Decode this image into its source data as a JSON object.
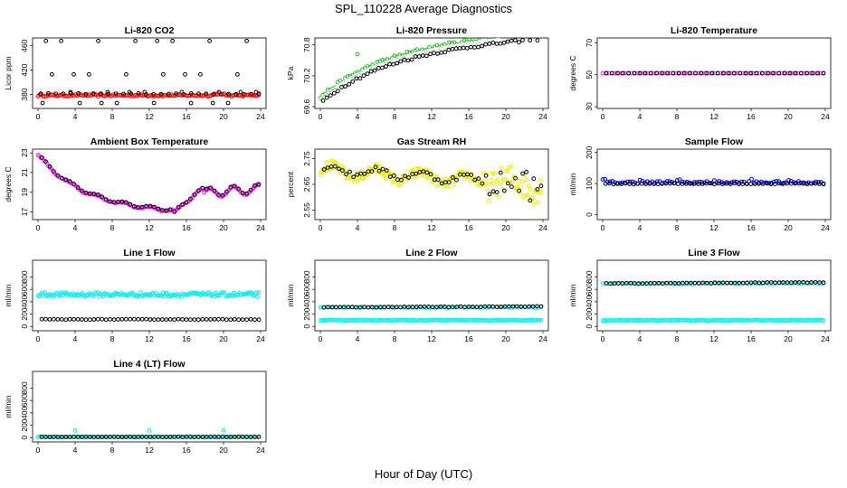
{
  "figure": {
    "title": "SPL_110228  Average Diagnostics",
    "xlabel": "Hour of Day (UTC)"
  },
  "colors": {
    "black": "#000000",
    "red": "#ff0000",
    "green": "#22bb22",
    "white": "#ffffff",
    "magenta": "#ff22ff",
    "yellow": "#eeee00",
    "blue": "#0000ee",
    "cyan": "#00eeee"
  },
  "chart_data": [
    {
      "type": "scatter",
      "title": "Li-820 CO2",
      "ylabel": "Licor ppm",
      "xlim": [
        0,
        24
      ],
      "xticks": [
        0,
        4,
        8,
        12,
        16,
        20,
        24
      ],
      "ylim": [
        360,
        470
      ],
      "yticks": [
        380,
        420,
        460
      ],
      "series": [
        {
          "name": "co2-low-scatter",
          "color": "black",
          "gen": "co2low"
        },
        {
          "name": "co2-red",
          "color": "red",
          "gen": "co2red"
        },
        {
          "name": "co2-black-base",
          "color": "black",
          "gen": "co2base"
        }
      ]
    },
    {
      "type": "scatter",
      "title": "Li-820 Pressure",
      "ylabel": "kPa",
      "xlim": [
        0,
        24
      ],
      "xticks": [
        0,
        4,
        8,
        12,
        16,
        20,
        24
      ],
      "ylim": [
        69.6,
        70.9
      ],
      "yticks": [
        69.6,
        70.2,
        70.8
      ],
      "series": [
        {
          "name": "pressure-green",
          "color": "green",
          "gen": "presgreen"
        },
        {
          "name": "pressure-white-line",
          "color": "white",
          "gen": "preswhite"
        },
        {
          "name": "pressure-black",
          "color": "black",
          "gen": "presblack"
        }
      ]
    },
    {
      "type": "scatter",
      "title": "Li-820 Temperature",
      "ylabel": "degrees C",
      "xlim": [
        0,
        24
      ],
      "xticks": [
        0,
        4,
        8,
        12,
        16,
        20,
        24
      ],
      "ylim": [
        30,
        72
      ],
      "yticks": [
        30,
        50,
        70
      ],
      "series": [
        {
          "name": "licor-temp-magenta",
          "color": "magenta",
          "gen": "lictempm"
        },
        {
          "name": "licor-temp-black",
          "color": "black",
          "gen": "lictempk"
        }
      ]
    },
    {
      "type": "scatter",
      "title": "Ambient Box Temperature",
      "ylabel": "degrees C",
      "xlim": [
        0,
        24
      ],
      "xticks": [
        0,
        4,
        8,
        12,
        16,
        20,
        24
      ],
      "ylim": [
        16.4,
        23.2
      ],
      "yticks": [
        17,
        19,
        21,
        23
      ],
      "series": [
        {
          "name": "box-temp-magenta",
          "color": "magenta",
          "gen": "boxm"
        },
        {
          "name": "box-temp-black",
          "color": "black",
          "gen": "boxk"
        }
      ]
    },
    {
      "type": "scatter",
      "title": "Gas Stream RH",
      "ylabel": "percent",
      "xlim": [
        0,
        24
      ],
      "xticks": [
        0,
        4,
        8,
        12,
        16,
        20,
        24
      ],
      "ylim": [
        2.52,
        2.78
      ],
      "yticks": [
        2.55,
        2.65,
        2.75
      ],
      "series": [
        {
          "name": "rh-yellow",
          "color": "yellow",
          "gen": "rhy"
        },
        {
          "name": "rh-black",
          "color": "black",
          "gen": "rhk"
        }
      ]
    },
    {
      "type": "scatter",
      "title": "Sample Flow",
      "ylabel": "ml/min",
      "xlim": [
        0,
        24
      ],
      "xticks": [
        0,
        4,
        8,
        12,
        16,
        20,
        24
      ],
      "ylim": [
        -10,
        205
      ],
      "yticks": [
        0,
        100,
        200
      ],
      "series": [
        {
          "name": "sample-flow-blue",
          "color": "blue",
          "gen": "sfb"
        },
        {
          "name": "sample-flow-black",
          "color": "black",
          "gen": "sfk"
        }
      ]
    },
    {
      "type": "scatter",
      "title": "Line 1 Flow",
      "ylabel": "ml/min",
      "xlim": [
        0,
        24
      ],
      "xticks": [
        0,
        4,
        8,
        12,
        16,
        20,
        24
      ],
      "ylim": [
        -40,
        1040
      ],
      "yticks": [
        0,
        200,
        400,
        600,
        800
      ],
      "series": [
        {
          "name": "line1-cyan",
          "color": "cyan",
          "gen": "l1c"
        },
        {
          "name": "line1-black",
          "color": "black",
          "gen": "l1k"
        }
      ]
    },
    {
      "type": "scatter",
      "title": "Line 2 Flow",
      "ylabel": "ml/min",
      "xlim": [
        0,
        24
      ],
      "xticks": [
        0,
        4,
        8,
        12,
        16,
        20,
        24
      ],
      "ylim": [
        -40,
        1040
      ],
      "yticks": [
        0,
        200,
        400,
        600,
        800
      ],
      "series": [
        {
          "name": "line2-cyan-low",
          "color": "cyan",
          "gen": "l2c"
        },
        {
          "name": "line2-cyan-high",
          "color": "cyan",
          "gen": "l2ch"
        },
        {
          "name": "line2-black",
          "color": "black",
          "gen": "l2k"
        }
      ]
    },
    {
      "type": "scatter",
      "title": "Line 3 Flow",
      "ylabel": "ml/min",
      "xlim": [
        0,
        24
      ],
      "xticks": [
        0,
        4,
        8,
        12,
        16,
        20,
        24
      ],
      "ylim": [
        -40,
        1040
      ],
      "yticks": [
        0,
        200,
        400,
        600,
        800
      ],
      "series": [
        {
          "name": "line3-cyan-low",
          "color": "cyan",
          "gen": "l3c"
        },
        {
          "name": "line3-cyan-high",
          "color": "cyan",
          "gen": "l3ch"
        },
        {
          "name": "line3-black",
          "color": "black",
          "gen": "l3k"
        }
      ]
    },
    {
      "type": "scatter",
      "title": "Line 4 (LT) Flow",
      "ylabel": "ml/min",
      "xlim": [
        0,
        24
      ],
      "xticks": [
        0,
        4,
        8,
        12,
        16,
        20,
        24
      ],
      "ylim": [
        -40,
        1040
      ],
      "yticks": [
        0,
        200,
        400,
        600,
        800
      ],
      "series": [
        {
          "name": "line4-cyan",
          "color": "cyan",
          "gen": "l4c"
        },
        {
          "name": "line4-black",
          "color": "black",
          "gen": "l4k"
        }
      ]
    }
  ]
}
